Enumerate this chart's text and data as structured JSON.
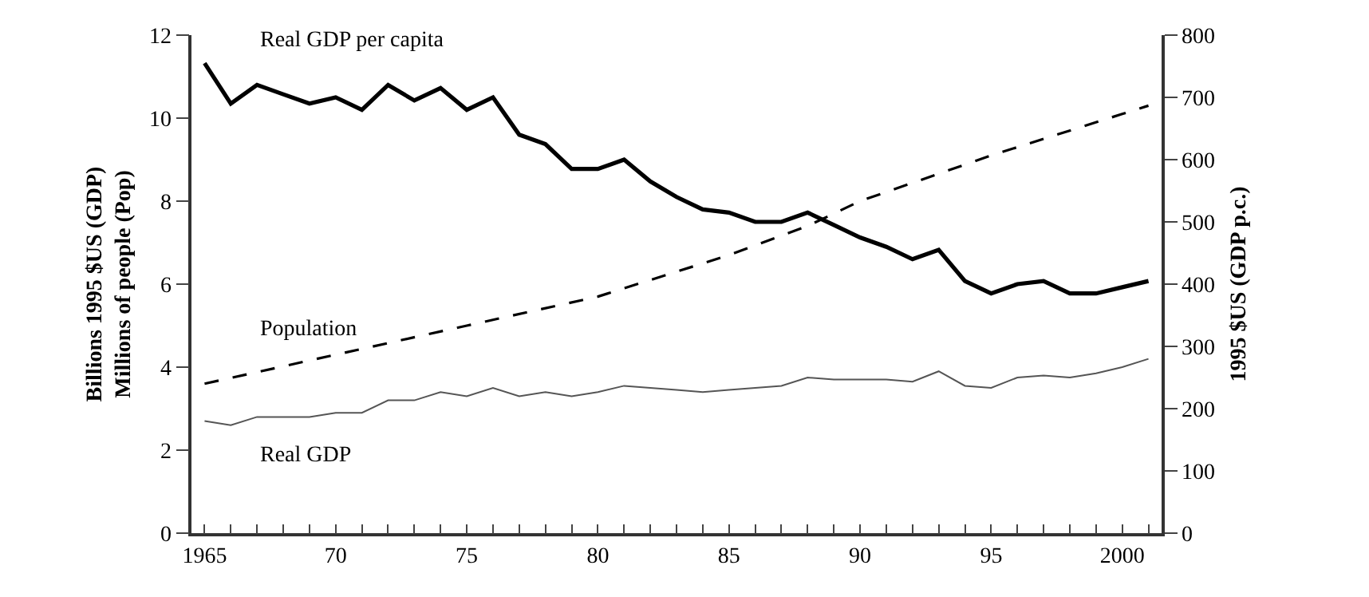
{
  "chart_data": {
    "type": "line",
    "ylabel": "Billions 1995 $US (GDP)\nMillions of people (Pop)",
    "y2label": "1995 $US (GDP p.c.)",
    "xlim": [
      1964.5,
      2001.5
    ],
    "xticks": [
      {
        "value": 1965,
        "label": "1965"
      },
      {
        "value": 1966,
        "label": null
      },
      {
        "value": 1967,
        "label": null
      },
      {
        "value": 1968,
        "label": null
      },
      {
        "value": 1969,
        "label": null
      },
      {
        "value": 1970,
        "label": "70"
      },
      {
        "value": 1971,
        "label": null
      },
      {
        "value": 1972,
        "label": null
      },
      {
        "value": 1973,
        "label": null
      },
      {
        "value": 1974,
        "label": null
      },
      {
        "value": 1975,
        "label": "75"
      },
      {
        "value": 1976,
        "label": null
      },
      {
        "value": 1977,
        "label": null
      },
      {
        "value": 1978,
        "label": null
      },
      {
        "value": 1979,
        "label": null
      },
      {
        "value": 1980,
        "label": "80"
      },
      {
        "value": 1981,
        "label": null
      },
      {
        "value": 1982,
        "label": null
      },
      {
        "value": 1983,
        "label": null
      },
      {
        "value": 1984,
        "label": null
      },
      {
        "value": 1985,
        "label": "85"
      },
      {
        "value": 1986,
        "label": null
      },
      {
        "value": 1987,
        "label": null
      },
      {
        "value": 1988,
        "label": null
      },
      {
        "value": 1989,
        "label": null
      },
      {
        "value": 1990,
        "label": "90"
      },
      {
        "value": 1991,
        "label": null
      },
      {
        "value": 1992,
        "label": null
      },
      {
        "value": 1993,
        "label": null
      },
      {
        "value": 1994,
        "label": null
      },
      {
        "value": 1995,
        "label": "95"
      },
      {
        "value": 1996,
        "label": null
      },
      {
        "value": 1997,
        "label": null
      },
      {
        "value": 1998,
        "label": null
      },
      {
        "value": 1999,
        "label": null
      },
      {
        "value": 2000,
        "label": "2000"
      },
      {
        "value": 2001,
        "label": null
      }
    ],
    "ylim": [
      0,
      12
    ],
    "yticks": [
      0,
      2,
      4,
      6,
      8,
      10,
      12
    ],
    "y2lim": [
      0,
      800
    ],
    "y2ticks": [
      0,
      100,
      200,
      300,
      400,
      500,
      600,
      700,
      800
    ],
    "legend": false,
    "marker": "none",
    "x": [
      1965,
      1966,
      1967,
      1968,
      1969,
      1970,
      1971,
      1972,
      1973,
      1974,
      1975,
      1976,
      1977,
      1978,
      1979,
      1980,
      1981,
      1982,
      1983,
      1984,
      1985,
      1986,
      1987,
      1988,
      1989,
      1990,
      1991,
      1992,
      1993,
      1994,
      1995,
      1996,
      1997,
      1998,
      1999,
      2000,
      2001
    ],
    "series": [
      {
        "name": "Real GDP per capita",
        "color": "#000000",
        "axis": "y2",
        "line_style": "solid",
        "values": [
          755,
          690,
          720,
          705,
          690,
          700,
          680,
          720,
          695,
          715,
          680,
          700,
          640,
          625,
          585,
          585,
          600,
          565,
          540,
          520,
          515,
          500,
          500,
          515,
          495,
          475,
          460,
          440,
          455,
          405,
          385,
          400,
          405,
          385,
          385,
          395,
          405
        ]
      },
      {
        "name": "Population",
        "color": "#000000",
        "line_style": "dashed",
        "x": [
          1965,
          1970,
          1975,
          1980,
          1985,
          1988,
          1990,
          1995,
          2000,
          2001
        ],
        "values": [
          3.6,
          4.3,
          5.0,
          5.7,
          6.7,
          7.4,
          8.0,
          9.1,
          10.1,
          10.3
        ]
      },
      {
        "name": "Real GDP",
        "color": "#555555",
        "line_style": "solid",
        "values": [
          2.7,
          2.6,
          2.8,
          2.8,
          2.8,
          2.9,
          2.9,
          3.2,
          3.2,
          3.4,
          3.3,
          3.5,
          3.3,
          3.4,
          3.3,
          3.4,
          3.55,
          3.5,
          3.45,
          3.4,
          3.45,
          3.5,
          3.55,
          3.75,
          3.7,
          3.7,
          3.7,
          3.65,
          3.9,
          3.55,
          3.5,
          3.75,
          3.8,
          3.75,
          3.85,
          4.0,
          4.2
        ]
      }
    ]
  }
}
